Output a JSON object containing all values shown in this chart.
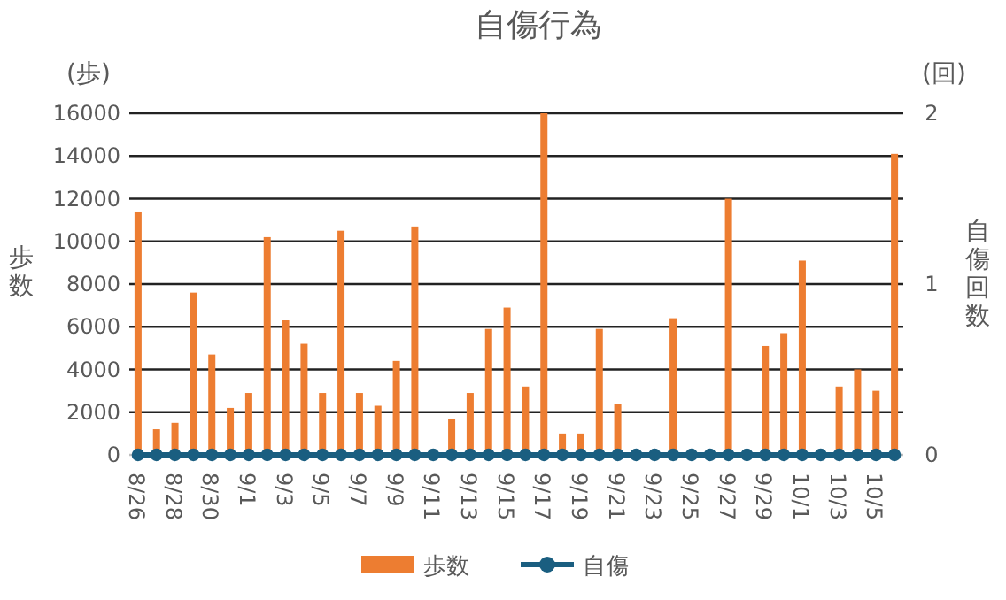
{
  "chart_data": {
    "type": "bar",
    "title": "自傷行為",
    "ylabel": "歩数",
    "y2label": "自傷回数",
    "annotations": [
      "(歩)",
      "(回)"
    ],
    "categories": [
      "8/26",
      null,
      "8/28",
      null,
      "8/30",
      null,
      "9/1",
      null,
      "9/3",
      null,
      "9/5",
      null,
      "9/7",
      null,
      "9/9",
      null,
      "9/11",
      null,
      "9/13",
      null,
      "9/15",
      null,
      "9/17",
      null,
      "9/19",
      null,
      "9/21",
      null,
      "9/23",
      null,
      "9/25",
      null,
      "9/27",
      null,
      "9/29",
      null,
      "10/1",
      null,
      "10/3",
      null,
      "10/5",
      null
    ],
    "series": [
      {
        "name": "歩数",
        "type": "bar",
        "color": "#ed7d31",
        "values": [
          11400,
          1200,
          1500,
          7600,
          4700,
          2200,
          2900,
          10200,
          6300,
          5200,
          2900,
          10500,
          2900,
          2300,
          4400,
          10700,
          0,
          1700,
          2900,
          5900,
          6900,
          3200,
          16000,
          1000,
          1000,
          5900,
          2400,
          0,
          0,
          6400,
          0,
          0,
          12000,
          0,
          5100,
          5700,
          9100,
          0,
          3200,
          4000,
          3000,
          14100
        ]
      },
      {
        "name": "自傷",
        "type": "line",
        "axis": "y2",
        "color": "#1a5e80",
        "marker": "circle",
        "values": [
          0,
          0,
          0,
          0,
          0,
          0,
          0,
          0,
          0,
          0,
          0,
          0,
          0,
          0,
          0,
          0,
          0,
          0,
          0,
          0,
          0,
          0,
          0,
          0,
          0,
          0,
          0,
          0,
          0,
          0,
          0,
          0,
          0,
          0,
          0,
          0,
          0,
          0,
          0,
          0,
          0,
          0
        ]
      }
    ],
    "ylim": [
      0,
      16000
    ],
    "yticks": [
      0,
      2000,
      4000,
      6000,
      8000,
      10000,
      12000,
      14000,
      16000
    ],
    "y2lim": [
      0,
      2
    ],
    "y2ticks": [
      0,
      1,
      2
    ],
    "grid": "y",
    "legend": "bottom"
  }
}
